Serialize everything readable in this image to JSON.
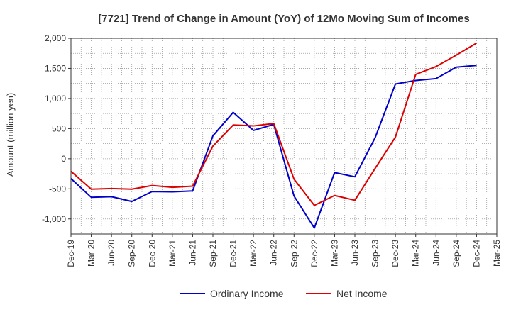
{
  "chart_data": {
    "type": "line",
    "title": "[7721]  Trend of Change in Amount (YoY) of 12Mo Moving Sum of Incomes",
    "ylabel": "Amount (million yen)",
    "xlabel": "",
    "ylim": [
      -1250,
      2000
    ],
    "yticks": [
      2000,
      1500,
      1000,
      500,
      0,
      -500,
      -1000
    ],
    "ytick_labels": [
      "2,000",
      "1,500",
      "1,000",
      "500",
      "0",
      "-500",
      "-1,000"
    ],
    "categories": [
      "Dec-19",
      "Mar-20",
      "Jun-20",
      "Sep-20",
      "Dec-20",
      "Mar-21",
      "Jun-21",
      "Sep-21",
      "Dec-21",
      "Mar-22",
      "Jun-22",
      "Sep-22",
      "Dec-22",
      "Mar-23",
      "Jun-23",
      "Sep-23",
      "Dec-23",
      "Mar-24",
      "Jun-24",
      "Sep-24",
      "Dec-24",
      "Mar-25"
    ],
    "grid": true,
    "legend_position": "bottom-center",
    "series": [
      {
        "name": "Ordinary Income",
        "color": "#0000cc",
        "values": [
          -330,
          -640,
          -630,
          -710,
          -545,
          -550,
          -535,
          380,
          770,
          470,
          570,
          -620,
          -1150,
          -230,
          -300,
          350,
          1240,
          1300,
          1330,
          1520,
          1550,
          null
        ]
      },
      {
        "name": "Net Income",
        "color": "#dd0000",
        "values": [
          -210,
          -505,
          -495,
          -505,
          -445,
          -475,
          -455,
          210,
          560,
          545,
          585,
          -340,
          -775,
          -610,
          -690,
          -160,
          360,
          1400,
          1530,
          1720,
          1920,
          null
        ]
      }
    ]
  }
}
